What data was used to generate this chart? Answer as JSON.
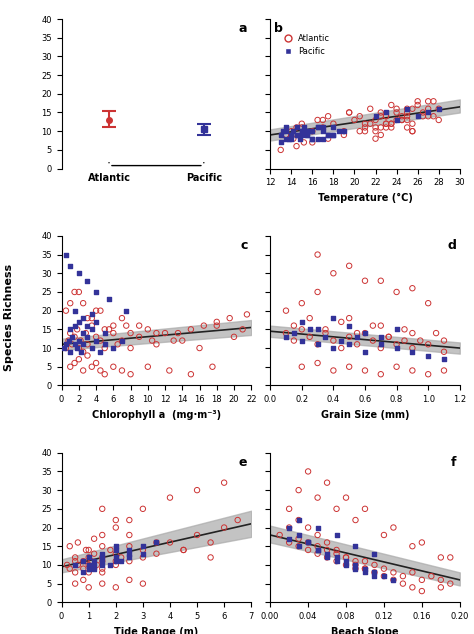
{
  "panel_a": {
    "atlantic_mean": 13.0,
    "atlantic_ci_low": 11.0,
    "atlantic_ci_high": 15.5,
    "pacific_mean": 10.5,
    "pacific_ci_low": 9.0,
    "pacific_ci_high": 11.8,
    "ylim": [
      0,
      40
    ],
    "yticks": [
      0,
      5,
      10,
      15,
      20,
      25,
      30,
      35,
      40
    ]
  },
  "panel_b": {
    "label": "b",
    "xlabel": "Temperature (°C)",
    "xlim": [
      12,
      30
    ],
    "xticks": [
      12,
      14,
      16,
      18,
      20,
      22,
      24,
      26,
      28,
      30
    ],
    "ylim": [
      0,
      40
    ],
    "line_x": [
      12,
      30
    ],
    "line_y": [
      9.0,
      16.5
    ],
    "ci_low": [
      7.5,
      15.0
    ],
    "ci_high": [
      10.5,
      18.5
    ],
    "atlantic_x": [
      13.5,
      14.0,
      14.2,
      14.5,
      15.0,
      15.0,
      15.2,
      16.0,
      16.5,
      17.0,
      17.5,
      18.0,
      19.0,
      19.5,
      20.0,
      20.5,
      21.0,
      21.5,
      21.5,
      22.0,
      22.0,
      22.5,
      22.5,
      23.0,
      23.0,
      23.5,
      23.5,
      24.0,
      24.0,
      24.5,
      25.0,
      25.0,
      25.5,
      26.0,
      26.5,
      27.0,
      27.5,
      28.0,
      28.0,
      22.0,
      22.5,
      23.0,
      23.5,
      24.0,
      24.5,
      25.0,
      25.5,
      25.5,
      26.0,
      27.0,
      13.0,
      14.5,
      16.0,
      17.5,
      19.0,
      20.5,
      22.0,
      23.5,
      25.0,
      26.5,
      21.0,
      23.0,
      25.0,
      27.0,
      22.5,
      24.5,
      13.5,
      15.0,
      17.0,
      19.5,
      21.0,
      23.0,
      25.5,
      27.5
    ],
    "atlantic_y": [
      9,
      10,
      8,
      11,
      12,
      9,
      7,
      10,
      13,
      11,
      14,
      12,
      10,
      15,
      13,
      14,
      11,
      12,
      16,
      10,
      13,
      15,
      9,
      14,
      11,
      12,
      17,
      13,
      15,
      14,
      16,
      11,
      10,
      17,
      15,
      18,
      14,
      16,
      13,
      8,
      14,
      12,
      11,
      16,
      13,
      15,
      12,
      10,
      18,
      14,
      5,
      6,
      7,
      8,
      9,
      10,
      11,
      12,
      13,
      14,
      10,
      12,
      14,
      16,
      11,
      13,
      9,
      11,
      13,
      15,
      12,
      14,
      16,
      18
    ],
    "pacific_x": [
      13.0,
      13.2,
      13.5,
      13.8,
      14.0,
      14.2,
      14.5,
      14.8,
      15.0,
      15.2,
      15.5,
      15.8,
      16.0,
      16.5,
      17.0,
      17.5,
      18.0,
      19.0,
      22.0,
      23.0,
      24.0,
      25.0,
      26.0,
      27.0,
      28.0,
      13.5,
      14.5,
      15.5,
      16.5,
      17.5,
      18.5,
      13.0,
      14.0,
      15.0,
      16.0,
      17.0,
      18.0,
      13.5,
      14.5,
      15.5,
      16.5,
      14.0,
      15.0,
      16.0,
      17.0,
      18.0
    ],
    "pacific_y": [
      9,
      10,
      11,
      8,
      9,
      10,
      9,
      8,
      10,
      11,
      9,
      10,
      8,
      11,
      10,
      9,
      11,
      10,
      14,
      15,
      13,
      16,
      14,
      15,
      16,
      8,
      9,
      10,
      11,
      9,
      10,
      7,
      8,
      9,
      10,
      8,
      9,
      10,
      11,
      9,
      8,
      9,
      10,
      8,
      11,
      9
    ]
  },
  "panel_c": {
    "label": "c",
    "xlabel": "Chlorophyll a  (mg·m⁻³)",
    "xlim": [
      0,
      22
    ],
    "xticks": [
      0,
      2,
      4,
      6,
      8,
      10,
      12,
      14,
      16,
      18,
      20,
      22
    ],
    "ylim": [
      0,
      40
    ],
    "line_x": [
      0,
      22
    ],
    "line_y": [
      11.0,
      15.5
    ],
    "ci_low": [
      9.5,
      13.5
    ],
    "ci_high": [
      12.5,
      17.5
    ],
    "atlantic_x": [
      0.5,
      0.8,
      1.0,
      1.2,
      1.5,
      1.8,
      2.0,
      2.2,
      2.5,
      2.8,
      3.0,
      3.5,
      4.0,
      4.5,
      5.0,
      5.5,
      6.0,
      6.5,
      7.0,
      7.5,
      8.0,
      9.0,
      10.0,
      11.0,
      12.0,
      14.0,
      16.0,
      18.0,
      20.0,
      21.0,
      1.0,
      1.5,
      2.0,
      2.5,
      3.0,
      3.5,
      4.0,
      4.5,
      5.0,
      6.0,
      7.0,
      8.0,
      10.0,
      12.5,
      15.0,
      17.5,
      0.5,
      1.0,
      2.0,
      3.0,
      4.0,
      5.0,
      7.0,
      9.0,
      11.0,
      13.0,
      15.0,
      18.0,
      21.5,
      1.5,
      2.5,
      3.5,
      4.5,
      6.0,
      8.0,
      10.5,
      13.5,
      16.5,
      19.5
    ],
    "atlantic_y": [
      10,
      12,
      14,
      11,
      13,
      15,
      10,
      12,
      9,
      14,
      11,
      16,
      13,
      12,
      10,
      15,
      14,
      11,
      12,
      16,
      10,
      13,
      15,
      11,
      14,
      12,
      10,
      16,
      13,
      15,
      5,
      6,
      7,
      4,
      8,
      5,
      6,
      4,
      3,
      5,
      4,
      3,
      5,
      4,
      3,
      5,
      20,
      22,
      25,
      18,
      20,
      15,
      18,
      16,
      14,
      12,
      15,
      17,
      19,
      25,
      22,
      18,
      20,
      16,
      14,
      12,
      14,
      16,
      18
    ],
    "pacific_x": [
      0.3,
      0.5,
      0.8,
      1.0,
      1.2,
      1.5,
      1.8,
      2.0,
      2.2,
      2.5,
      3.0,
      3.5,
      4.0,
      4.5,
      5.0,
      6.0,
      7.0,
      1.0,
      1.5,
      2.0,
      2.5,
      3.0,
      3.5,
      4.0,
      5.0,
      1.5,
      2.5,
      3.5,
      0.5,
      1.0,
      2.0,
      3.0,
      4.0,
      5.5,
      7.5
    ],
    "pacific_y": [
      10,
      11,
      12,
      9,
      13,
      11,
      10,
      12,
      9,
      11,
      13,
      10,
      12,
      9,
      11,
      10,
      12,
      15,
      16,
      17,
      14,
      16,
      15,
      17,
      14,
      20,
      18,
      19,
      35,
      32,
      30,
      28,
      25,
      23,
      20
    ]
  },
  "panel_d": {
    "label": "d",
    "xlabel": "Grain Size (mm)",
    "xlim": [
      0.0,
      1.2
    ],
    "xticks": [
      0.0,
      0.2,
      0.4,
      0.6,
      0.8,
      1.0,
      1.2
    ],
    "ylim": [
      0,
      40
    ],
    "line_x": [
      0.0,
      1.2
    ],
    "line_y": [
      14.5,
      10.0
    ],
    "ci_low": [
      13.0,
      8.5
    ],
    "ci_high": [
      16.0,
      11.5
    ],
    "atlantic_x": [
      0.1,
      0.15,
      0.2,
      0.25,
      0.3,
      0.35,
      0.4,
      0.45,
      0.5,
      0.55,
      0.6,
      0.65,
      0.7,
      0.75,
      0.8,
      0.85,
      0.9,
      1.0,
      1.1,
      0.2,
      0.3,
      0.4,
      0.5,
      0.6,
      0.7,
      0.8,
      0.9,
      1.0,
      1.1,
      0.15,
      0.25,
      0.35,
      0.45,
      0.55,
      0.65,
      0.75,
      0.85,
      0.95,
      1.05,
      0.1,
      0.2,
      0.3,
      0.5,
      0.7,
      0.9,
      1.1,
      0.4,
      0.6,
      0.8,
      1.0,
      0.3,
      0.5,
      0.7,
      0.9
    ],
    "atlantic_y": [
      14,
      12,
      15,
      13,
      11,
      14,
      12,
      10,
      13,
      11,
      14,
      12,
      10,
      13,
      11,
      12,
      10,
      11,
      9,
      5,
      6,
      4,
      5,
      4,
      3,
      5,
      4,
      3,
      4,
      16,
      18,
      15,
      17,
      14,
      16,
      13,
      15,
      12,
      14,
      20,
      22,
      25,
      18,
      16,
      14,
      12,
      30,
      28,
      25,
      22,
      35,
      32,
      28,
      26
    ],
    "pacific_x": [
      0.1,
      0.15,
      0.2,
      0.25,
      0.3,
      0.35,
      0.4,
      0.45,
      0.5,
      0.55,
      0.6,
      0.7,
      0.8,
      0.9,
      1.0,
      1.1,
      0.2,
      0.3,
      0.4,
      0.5,
      0.6,
      0.7,
      0.8
    ],
    "pacific_y": [
      13,
      14,
      12,
      15,
      11,
      13,
      10,
      12,
      11,
      13,
      9,
      11,
      10,
      9,
      8,
      7,
      17,
      15,
      18,
      16,
      14,
      13,
      15
    ]
  },
  "panel_e": {
    "label": "e",
    "xlabel": "Tide Range (m)",
    "xlim": [
      0,
      7
    ],
    "xticks": [
      0,
      1,
      2,
      3,
      4,
      5,
      6,
      7
    ],
    "ylim": [
      0,
      40
    ],
    "line_x": [
      0,
      7
    ],
    "line_y": [
      9.5,
      21.0
    ],
    "ci_low": [
      8.0,
      17.5
    ],
    "ci_high": [
      11.5,
      24.5
    ],
    "atlantic_x": [
      0.2,
      0.3,
      0.5,
      0.5,
      0.5,
      0.6,
      0.8,
      0.8,
      1.0,
      1.0,
      1.0,
      1.0,
      1.1,
      1.2,
      1.2,
      1.3,
      1.5,
      1.5,
      1.5,
      1.5,
      1.5,
      1.8,
      2.0,
      2.0,
      2.0,
      2.2,
      2.5,
      2.5,
      3.0,
      3.0,
      3.5,
      4.0,
      4.5,
      5.0,
      5.5,
      6.0,
      6.5,
      0.5,
      0.8,
      1.0,
      1.5,
      2.0,
      2.5,
      3.0,
      0.3,
      0.6,
      0.9,
      1.2,
      1.5,
      2.0,
      2.5,
      3.0,
      4.0,
      5.0,
      6.0,
      1.5,
      2.0,
      2.5,
      3.5,
      4.5,
      5.5
    ],
    "atlantic_y": [
      10,
      9,
      8,
      11,
      12,
      10,
      11,
      9,
      10,
      12,
      8,
      14,
      11,
      9,
      13,
      10,
      12,
      9,
      11,
      15,
      8,
      14,
      13,
      11,
      10,
      12,
      11,
      15,
      14,
      12,
      13,
      16,
      14,
      18,
      16,
      20,
      22,
      5,
      6,
      4,
      5,
      4,
      6,
      5,
      15,
      16,
      14,
      17,
      18,
      20,
      22,
      25,
      28,
      30,
      32,
      25,
      22,
      18,
      16,
      14,
      12
    ],
    "pacific_x": [
      0.5,
      0.8,
      1.0,
      1.0,
      1.0,
      1.2,
      1.2,
      1.5,
      1.5,
      1.5,
      2.0,
      2.0,
      2.0,
      2.5,
      2.5,
      3.0,
      3.5,
      1.0,
      1.5,
      2.0,
      2.5,
      0.8,
      1.2,
      1.8,
      2.2,
      3.0
    ],
    "pacific_y": [
      10,
      11,
      9,
      12,
      10,
      11,
      10,
      12,
      13,
      11,
      14,
      12,
      15,
      14,
      13,
      15,
      16,
      9,
      10,
      11,
      12,
      8,
      9,
      10,
      11,
      13
    ]
  },
  "panel_f": {
    "label": "f",
    "xlabel": "Beach Slope",
    "xlim": [
      0.0,
      0.2
    ],
    "xticks": [
      0.0,
      0.04,
      0.08,
      0.12,
      0.16,
      0.2
    ],
    "ylim": [
      0,
      40
    ],
    "line_x": [
      0.0,
      0.2
    ],
    "line_y": [
      18.0,
      6.0
    ],
    "ci_low": [
      16.0,
      4.5
    ],
    "ci_high": [
      20.5,
      8.0
    ],
    "atlantic_x": [
      0.01,
      0.02,
      0.02,
      0.03,
      0.03,
      0.04,
      0.04,
      0.05,
      0.05,
      0.06,
      0.06,
      0.07,
      0.07,
      0.08,
      0.08,
      0.09,
      0.09,
      0.1,
      0.1,
      0.11,
      0.12,
      0.13,
      0.14,
      0.15,
      0.16,
      0.17,
      0.18,
      0.19,
      0.02,
      0.03,
      0.04,
      0.05,
      0.06,
      0.07,
      0.08,
      0.09,
      0.1,
      0.11,
      0.12,
      0.13,
      0.14,
      0.15,
      0.16,
      0.18,
      0.03,
      0.05,
      0.07,
      0.09,
      0.12,
      0.15,
      0.18,
      0.04,
      0.06,
      0.08,
      0.1,
      0.13,
      0.16,
      0.19
    ],
    "atlantic_y": [
      18,
      16,
      20,
      17,
      15,
      14,
      16,
      13,
      15,
      12,
      14,
      11,
      13,
      10,
      12,
      9,
      11,
      9,
      11,
      10,
      9,
      8,
      7,
      8,
      6,
      7,
      6,
      5,
      25,
      22,
      20,
      18,
      16,
      14,
      12,
      10,
      9,
      8,
      7,
      6,
      5,
      4,
      3,
      4,
      30,
      28,
      25,
      22,
      18,
      15,
      12,
      35,
      32,
      28,
      25,
      20,
      16,
      12
    ],
    "pacific_x": [
      0.02,
      0.03,
      0.04,
      0.05,
      0.06,
      0.07,
      0.08,
      0.09,
      0.1,
      0.11,
      0.12,
      0.13,
      0.02,
      0.03,
      0.04,
      0.05,
      0.06,
      0.07,
      0.08,
      0.09,
      0.1,
      0.11,
      0.03,
      0.05,
      0.07,
      0.09,
      0.11
    ],
    "pacific_y": [
      17,
      15,
      16,
      14,
      13,
      12,
      11,
      10,
      9,
      8,
      7,
      6,
      20,
      18,
      16,
      14,
      12,
      11,
      10,
      9,
      8,
      7,
      22,
      20,
      18,
      15,
      13
    ]
  },
  "atlantic_color": "#cc3333",
  "pacific_color": "#333399",
  "line_color": "#222222",
  "ci_color": "#aaaaaa",
  "background_color": "#ffffff",
  "yticks_panels": [
    0,
    5,
    10,
    15,
    20,
    25,
    30,
    35,
    40
  ],
  "ylabel": "Species Richness"
}
